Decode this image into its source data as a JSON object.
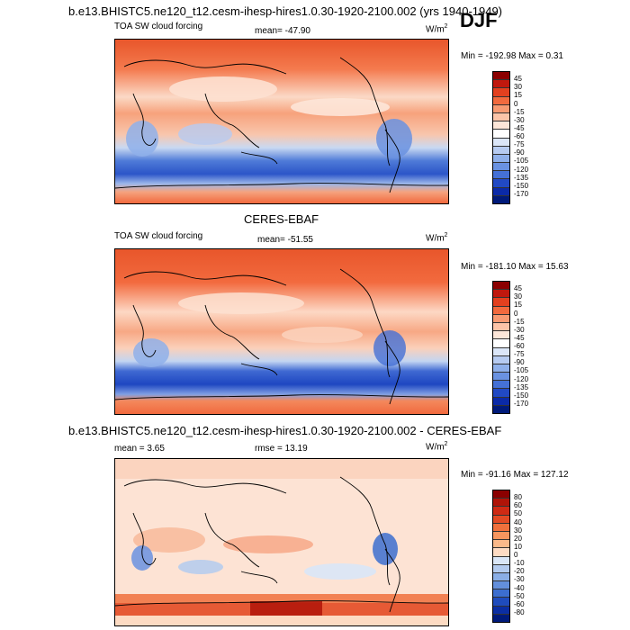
{
  "header": {
    "title": "b.e13.BHISTC5.ne120_t12.cesm-ihesp-hires1.0.30-1920-2100.002 (yrs 1940-1949)",
    "season": "DJF"
  },
  "panels": [
    {
      "id": "model",
      "field": "TOA SW cloud forcing",
      "mean_text": "mean= -47.90",
      "units": "W/m",
      "units_sup": "2",
      "minmax": "Min = -192.98 Max =   0.31",
      "colorbar_labels": [
        "45",
        "30",
        "15",
        "0",
        "-15",
        "-30",
        "-45",
        "-60",
        "-75",
        "-90",
        "-105",
        "-120",
        "-135",
        "-150",
        "-170"
      ],
      "colorbar_colors": [
        "#8b0000",
        "#c0180e",
        "#e3401f",
        "#f26a3e",
        "#f89a72",
        "#fcc4a8",
        "#fde6d8",
        "#ffffff",
        "#dbe6f8",
        "#b6cbf1",
        "#8fb0ea",
        "#6a92e1",
        "#4571d6",
        "#2149c4",
        "#0b2aa8",
        "#001a7a"
      ]
    },
    {
      "id": "obs",
      "title": "CERES-EBAF",
      "field": "TOA SW cloud forcing",
      "mean_text": "mean= -51.55",
      "units": "W/m",
      "units_sup": "2",
      "minmax": "Min = -181.10 Max =  15.63",
      "colorbar_labels": [
        "45",
        "30",
        "15",
        "0",
        "-15",
        "-30",
        "-45",
        "-60",
        "-75",
        "-90",
        "-105",
        "-120",
        "-135",
        "-150",
        "-170"
      ],
      "colorbar_colors": [
        "#8b0000",
        "#c0180e",
        "#e3401f",
        "#f26a3e",
        "#f89a72",
        "#fcc4a8",
        "#fde6d8",
        "#ffffff",
        "#dbe6f8",
        "#b6cbf1",
        "#8fb0ea",
        "#6a92e1",
        "#4571d6",
        "#2149c4",
        "#0b2aa8",
        "#001a7a"
      ]
    },
    {
      "id": "diff",
      "title": "b.e13.BHISTC5.ne120_t12.cesm-ihesp-hires1.0.30-1920-2100.002 - CERES-EBAF",
      "mean_text": "mean =   3.65",
      "rmse_text": "rmse =  13.19",
      "units": "W/m",
      "units_sup": "2",
      "minmax": "Min = -91.16 Max = 127.12",
      "colorbar_labels": [
        "80",
        "60",
        "50",
        "40",
        "30",
        "20",
        "10",
        "0",
        "-10",
        "-20",
        "-30",
        "-40",
        "-50",
        "-60",
        "-80"
      ],
      "colorbar_colors": [
        "#8b0000",
        "#b01408",
        "#cf2a14",
        "#e34a24",
        "#f0703c",
        "#f6955e",
        "#fab98a",
        "#fddbc3",
        "#d9e6f7",
        "#b3cbef",
        "#8aaee6",
        "#638fdc",
        "#3c6ecf",
        "#1f4cbd",
        "#0b2ea3",
        "#001a7a"
      ]
    }
  ],
  "chart_data": [
    {
      "type": "heatmap",
      "title": "TOA SW cloud forcing",
      "subtitle": "mean= -47.90",
      "units": "W/m2",
      "min": -192.98,
      "max": 0.31,
      "mean": -47.9,
      "colorbar_levels": [
        45,
        30,
        15,
        0,
        -15,
        -30,
        -45,
        -60,
        -75,
        -90,
        -105,
        -120,
        -135,
        -150,
        -170
      ]
    },
    {
      "type": "heatmap",
      "title": "CERES-EBAF",
      "subtitle": "TOA SW cloud forcing",
      "units": "W/m2",
      "min": -181.1,
      "max": 15.63,
      "mean": -51.55,
      "colorbar_levels": [
        45,
        30,
        15,
        0,
        -15,
        -30,
        -45,
        -60,
        -75,
        -90,
        -105,
        -120,
        -135,
        -150,
        -170
      ]
    },
    {
      "type": "heatmap",
      "title": "b.e13.BHISTC5.ne120_t12.cesm-ihesp-hires1.0.30-1920-2100.002 - CERES-EBAF",
      "units": "W/m2",
      "min": -91.16,
      "max": 127.12,
      "mean": 3.65,
      "rmse": 13.19,
      "colorbar_levels": [
        80,
        60,
        50,
        40,
        30,
        20,
        10,
        0,
        -10,
        -20,
        -30,
        -40,
        -50,
        -60,
        -80
      ]
    }
  ]
}
